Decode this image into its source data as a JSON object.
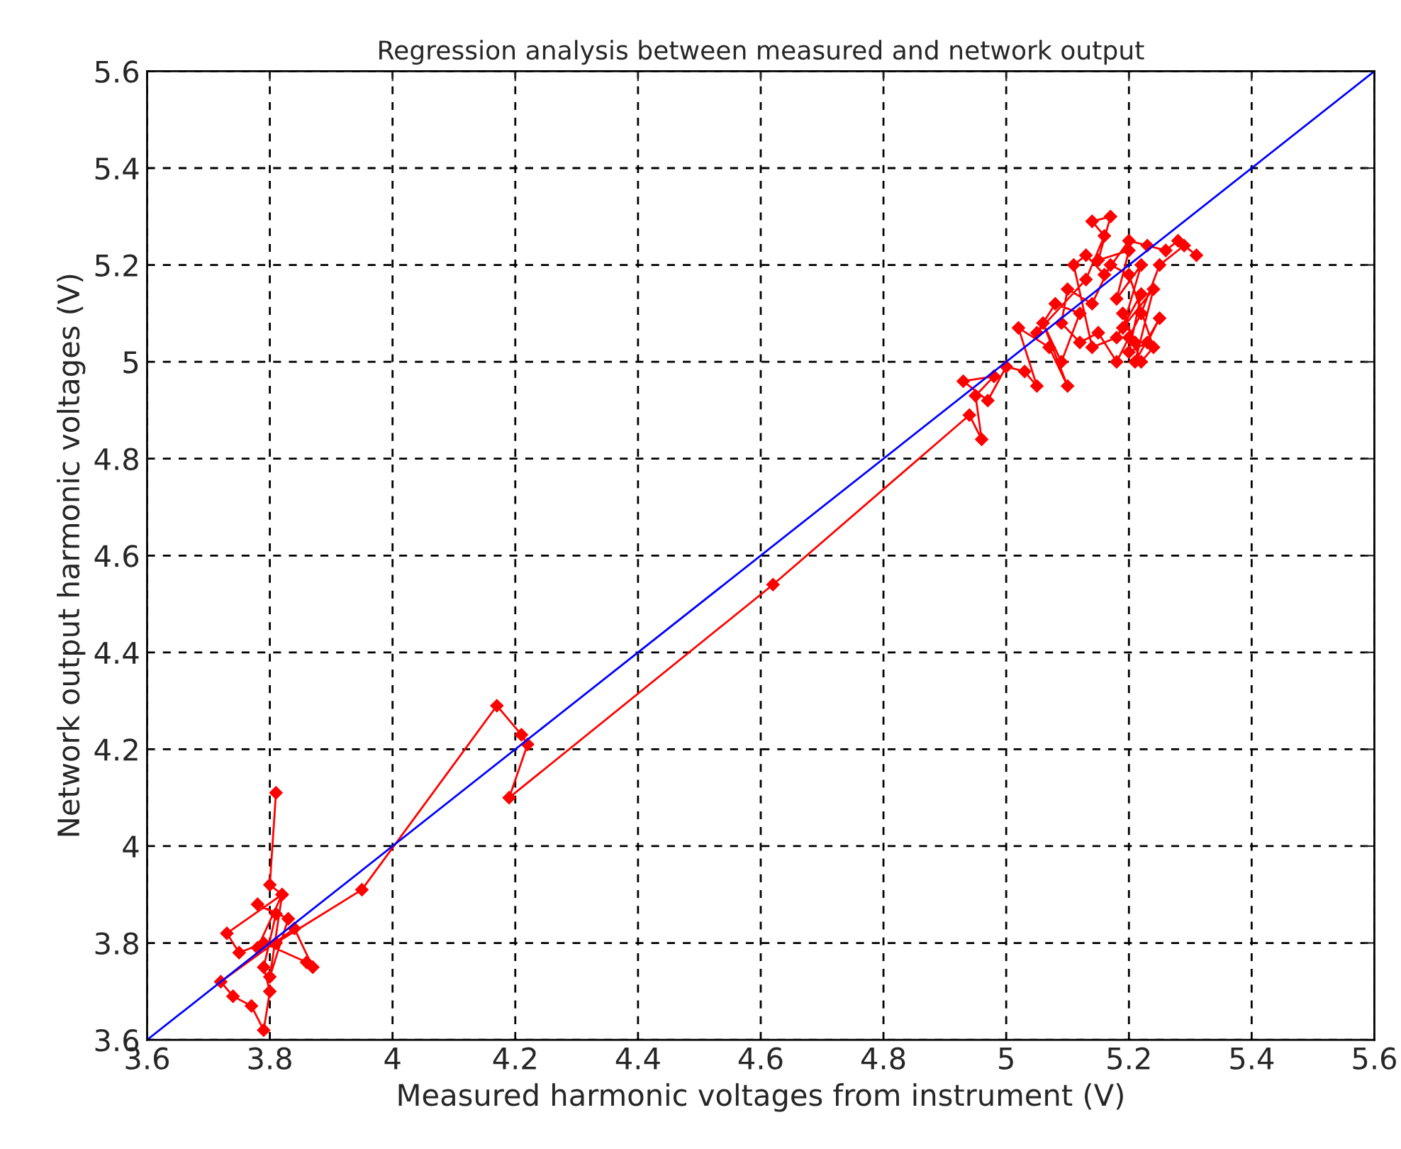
{
  "chart_data": {
    "type": "line",
    "title": "Regression analysis between measured and network output",
    "xlabel": "Measured harmonic voltages from instrument (V)",
    "ylabel": "Network output harmonic voltages (V)",
    "xlim": [
      3.6,
      5.6
    ],
    "ylim": [
      3.6,
      5.6
    ],
    "xticks": [
      3.6,
      3.8,
      4,
      4.2,
      4.4,
      4.6,
      4.8,
      5,
      5.2,
      5.4,
      5.6
    ],
    "yticks": [
      3.6,
      3.8,
      4,
      4.2,
      4.4,
      4.6,
      4.8,
      5,
      5.2,
      5.4,
      5.6
    ],
    "grid": true,
    "series": [
      {
        "color": "#ff0000",
        "marker": "diamond",
        "x": [
          3.81,
          3.8,
          3.82,
          3.73,
          3.75,
          3.79,
          3.86,
          3.87,
          3.84,
          3.72,
          3.74,
          3.77,
          3.79,
          3.8,
          3.79,
          3.81,
          3.78,
          3.83,
          3.8,
          3.82,
          3.78,
          3.81,
          3.95,
          4.17,
          4.21,
          4.22,
          4.19,
          4.62,
          4.94,
          4.96,
          4.95,
          4.98,
          4.93,
          4.97,
          5.0,
          5.03,
          5.05,
          5.02,
          5.07,
          5.1,
          5.06,
          5.09,
          5.12,
          5.08,
          5.05,
          5.13,
          5.16,
          5.14,
          5.17,
          5.15,
          5.2,
          5.18,
          5.22,
          5.19,
          5.24,
          5.21,
          5.25,
          5.23,
          5.2,
          5.22,
          5.18,
          5.14,
          5.11,
          5.13,
          5.16,
          5.2,
          5.23,
          5.26,
          5.28,
          5.31,
          5.29,
          5.25,
          5.22,
          5.2,
          5.18,
          5.15,
          5.12,
          5.09,
          5.1,
          5.14,
          5.17,
          5.2,
          5.24,
          5.22,
          5.19,
          5.21
        ],
        "values": [
          4.11,
          3.92,
          3.9,
          3.82,
          3.78,
          3.8,
          3.76,
          3.75,
          3.83,
          3.72,
          3.69,
          3.67,
          3.62,
          3.7,
          3.75,
          3.86,
          3.88,
          3.85,
          3.73,
          3.9,
          3.79,
          3.8,
          3.91,
          4.29,
          4.23,
          4.21,
          4.1,
          4.54,
          4.89,
          4.84,
          4.93,
          4.97,
          4.96,
          4.92,
          4.99,
          4.98,
          4.95,
          5.07,
          5.03,
          4.95,
          5.08,
          5.0,
          5.1,
          5.12,
          5.06,
          5.17,
          5.26,
          5.29,
          5.3,
          5.21,
          5.23,
          5.13,
          5.2,
          5.07,
          5.15,
          5.0,
          5.09,
          5.04,
          5.02,
          5.14,
          5.05,
          5.03,
          5.2,
          5.22,
          5.18,
          5.25,
          5.24,
          5.23,
          5.25,
          5.22,
          5.24,
          5.2,
          5.1,
          5.05,
          5.0,
          5.06,
          5.04,
          5.08,
          5.15,
          5.12,
          5.2,
          5.18,
          5.03,
          5.0,
          5.1,
          5.04
        ]
      },
      {
        "color": "#0000ff",
        "marker": "none",
        "x": [
          3.6,
          5.6
        ],
        "values": [
          3.6,
          5.6
        ]
      }
    ]
  }
}
